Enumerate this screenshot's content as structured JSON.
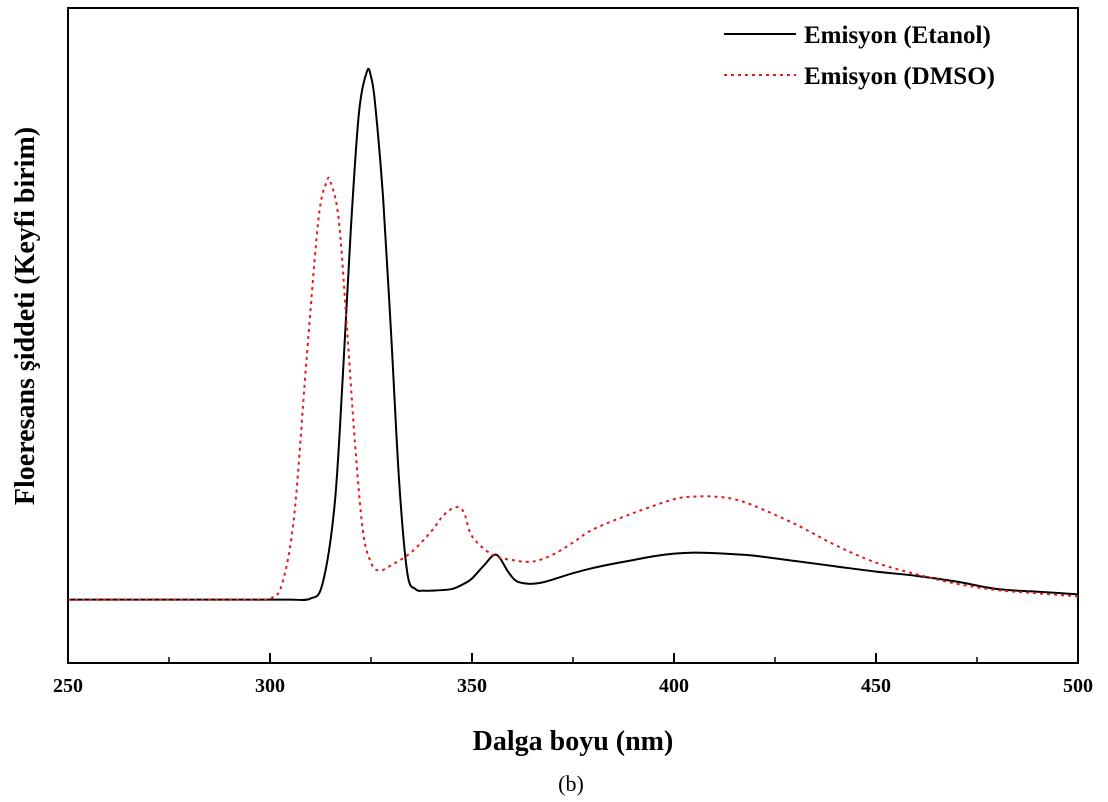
{
  "chart_data": {
    "type": "line",
    "xlabel": "Dalga boyu (nm)",
    "ylabel": "Floeresans şiddeti (Keyfi birim)",
    "caption": "(b)",
    "xlim": [
      250,
      500
    ],
    "ylim": [
      -0.12,
      1.12
    ],
    "x_ticks": [
      250,
      300,
      350,
      400,
      450,
      500
    ],
    "legend_position": "top-right",
    "grid": false,
    "series": [
      {
        "name": "Emisyon (Etanol)",
        "color": "#000000",
        "line_style": "solid",
        "x": [
          250,
          260,
          270,
          280,
          290,
          300,
          305,
          310,
          313,
          316,
          318,
          320,
          322,
          324,
          325,
          326,
          328,
          330,
          332,
          334,
          336,
          338,
          340,
          345,
          348,
          350,
          353,
          356,
          359,
          361,
          364,
          367,
          370,
          375,
          380,
          385,
          390,
          395,
          400,
          405,
          410,
          415,
          420,
          430,
          440,
          450,
          460,
          470,
          480,
          490,
          500
        ],
        "y": [
          0.0,
          0.0,
          0.0,
          0.0,
          0.0,
          0.0,
          0.0,
          0.002,
          0.03,
          0.18,
          0.42,
          0.7,
          0.92,
          1.0,
          0.99,
          0.94,
          0.76,
          0.5,
          0.22,
          0.05,
          0.02,
          0.017,
          0.017,
          0.02,
          0.03,
          0.04,
          0.065,
          0.085,
          0.052,
          0.035,
          0.03,
          0.032,
          0.038,
          0.05,
          0.06,
          0.068,
          0.075,
          0.082,
          0.087,
          0.089,
          0.088,
          0.086,
          0.083,
          0.073,
          0.063,
          0.053,
          0.045,
          0.034,
          0.02,
          0.015,
          0.01
        ]
      },
      {
        "name": "Emisyon (DMSO)",
        "color": "#e31a1c",
        "line_style": "dotted",
        "x": [
          250,
          260,
          270,
          280,
          290,
          295,
          300,
          303,
          306,
          309,
          312,
          314,
          315,
          317,
          319,
          321,
          323,
          325,
          327,
          330,
          335,
          340,
          343,
          346,
          348,
          350,
          355,
          360,
          365,
          370,
          375,
          380,
          390,
          400,
          405,
          410,
          415,
          420,
          430,
          440,
          450,
          460,
          470,
          480,
          490,
          500
        ],
        "y": [
          0.0,
          0.0,
          0.0,
          0.0,
          0.0,
          0.0,
          0.002,
          0.03,
          0.16,
          0.45,
          0.72,
          0.79,
          0.79,
          0.72,
          0.52,
          0.3,
          0.13,
          0.07,
          0.055,
          0.065,
          0.09,
          0.13,
          0.16,
          0.175,
          0.165,
          0.12,
          0.085,
          0.075,
          0.072,
          0.085,
          0.108,
          0.133,
          0.164,
          0.19,
          0.195,
          0.195,
          0.19,
          0.177,
          0.143,
          0.103,
          0.07,
          0.048,
          0.03,
          0.018,
          0.012,
          0.006
        ]
      }
    ]
  }
}
